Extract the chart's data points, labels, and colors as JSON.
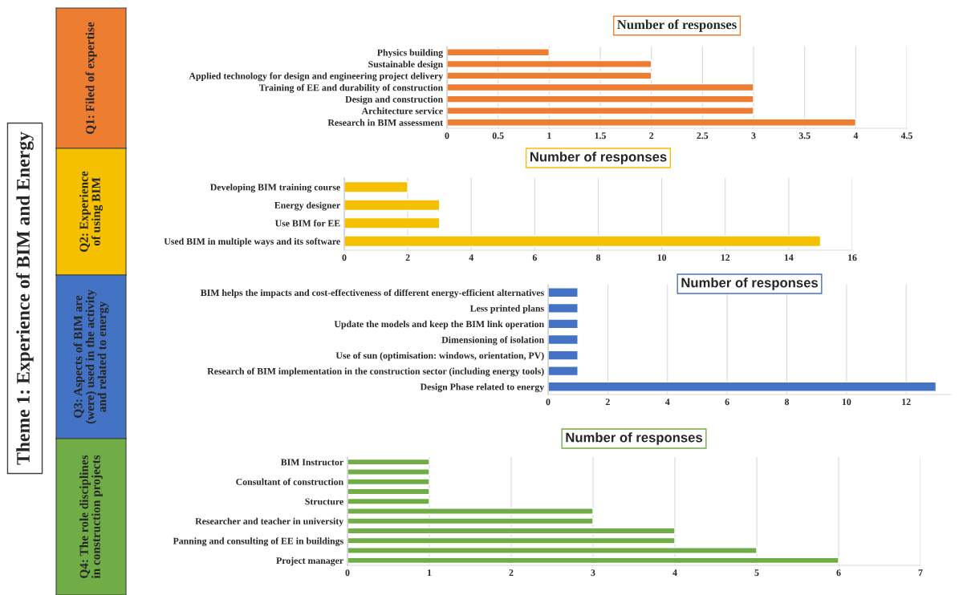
{
  "chart_data": [
    {
      "type": "bar",
      "orientation": "horizontal",
      "title": "Number of responses",
      "ylabel": "Q1: Filed of expertise",
      "annotations": [
        "Theme 1: Experience of BIM and Energy"
      ],
      "categories": [
        "Physics building",
        "Sustainable design",
        "Applied technology for design and engineering project delivery",
        "Training of EE and durability of construction",
        "Design and construction",
        "Architecture service",
        "Research in BIM assessment"
      ],
      "series": [
        {
          "color": "#ed7d31",
          "values": [
            1,
            2,
            2,
            3,
            3,
            3,
            4
          ]
        }
      ],
      "xlim": [
        0,
        4.5
      ],
      "xticks": [
        0,
        0.5,
        1,
        1.5,
        2,
        2.5,
        3,
        3.5,
        4,
        4.5
      ],
      "grid": "x"
    },
    {
      "type": "bar",
      "orientation": "horizontal",
      "title": "Number of responses",
      "ylabel": "Q2: Experience\nof using BIM",
      "categories": [
        "Developing BIM training course",
        "Energy designer",
        "Use BIM for EE",
        "Used BIM in multiple ways and its software"
      ],
      "series": [
        {
          "color": "#f5c000",
          "values": [
            2,
            3,
            3,
            15
          ]
        }
      ],
      "xlim": [
        0,
        16
      ],
      "xticks": [
        0,
        2,
        4,
        6,
        8,
        10,
        12,
        14,
        16
      ],
      "grid": "x"
    },
    {
      "type": "bar",
      "orientation": "horizontal",
      "title": "Number of responses",
      "ylabel": "Q3: Aspects of BIM are\n(were) used in the activity\nand related to energy",
      "categories": [
        "BIM helps the impacts and cost-effectiveness of different energy-efficient alternatives",
        "Less printed plans",
        "Update the models and keep the BIM link operation",
        "Dimensioning of isolation",
        "Use of sun (optimisation: windows, orientation, PV)",
        "Research of BIM implementation in the construction sector (including energy tools)",
        "Design Phase related to energy"
      ],
      "series": [
        {
          "color": "#4472c4",
          "values": [
            1,
            1,
            1,
            1,
            1,
            1,
            13
          ]
        }
      ],
      "xlim": [
        0,
        13.5
      ],
      "xticks": [
        0,
        2,
        4,
        6,
        8,
        10,
        12
      ],
      "grid": "x"
    },
    {
      "type": "bar",
      "orientation": "horizontal",
      "title": "Number of responses",
      "ylabel": "Q4: The role disciplines\nin construction projects",
      "categories": [
        "BIM Instructor",
        null,
        "Consultant of construction",
        null,
        "Structure",
        null,
        "Researcher and teacher in university",
        null,
        "Panning and consulting of EE in buildings",
        null,
        "Project manager"
      ],
      "series": [
        {
          "color": "#70ad47",
          "values": [
            1,
            1,
            1,
            1,
            1,
            3,
            3,
            4,
            4,
            5,
            6
          ]
        }
      ],
      "xlim": [
        0,
        7
      ],
      "xticks": [
        0,
        1,
        2,
        3,
        4,
        5,
        6,
        7
      ],
      "grid": "x"
    }
  ]
}
